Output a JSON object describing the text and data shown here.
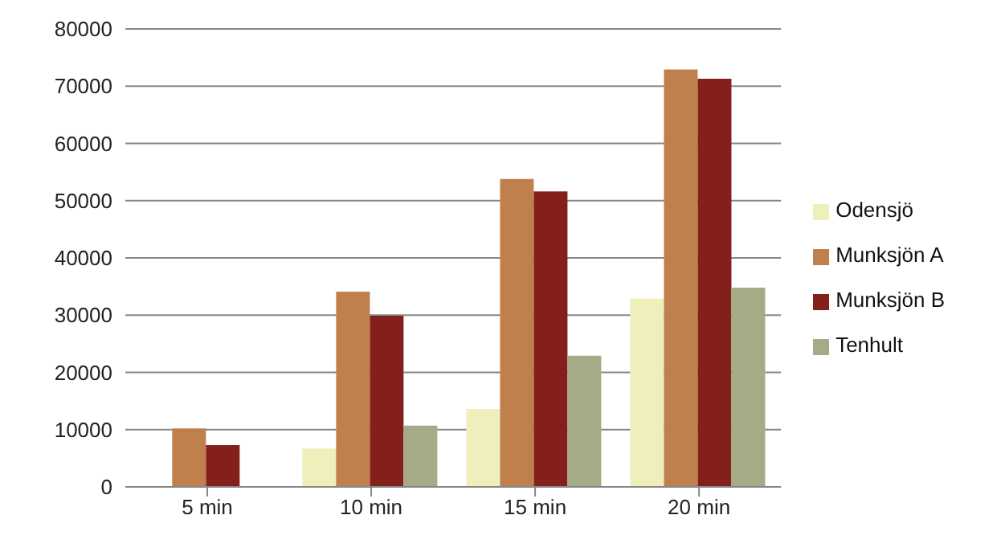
{
  "chart_data": {
    "type": "bar",
    "categories": [
      "5 min",
      "10 min",
      "15 min",
      "20 min"
    ],
    "series": [
      {
        "name": "Odensjö",
        "color": "#eeefbb",
        "values": [
          null,
          6700,
          13600,
          32900
        ]
      },
      {
        "name": "Munksjön A",
        "color": "#c0804e",
        "values": [
          10200,
          34100,
          53800,
          72900
        ]
      },
      {
        "name": "Munksjön B",
        "color": "#84201c",
        "values": [
          7300,
          29900,
          51600,
          71300
        ]
      },
      {
        "name": "Tenhult",
        "color": "#a5ab87",
        "values": [
          null,
          10700,
          22900,
          34800
        ]
      }
    ],
    "ylim": [
      0,
      80000
    ],
    "yticks": [
      0,
      10000,
      20000,
      30000,
      40000,
      50000,
      60000,
      70000,
      80000
    ],
    "grid": "y",
    "legend": "right"
  }
}
